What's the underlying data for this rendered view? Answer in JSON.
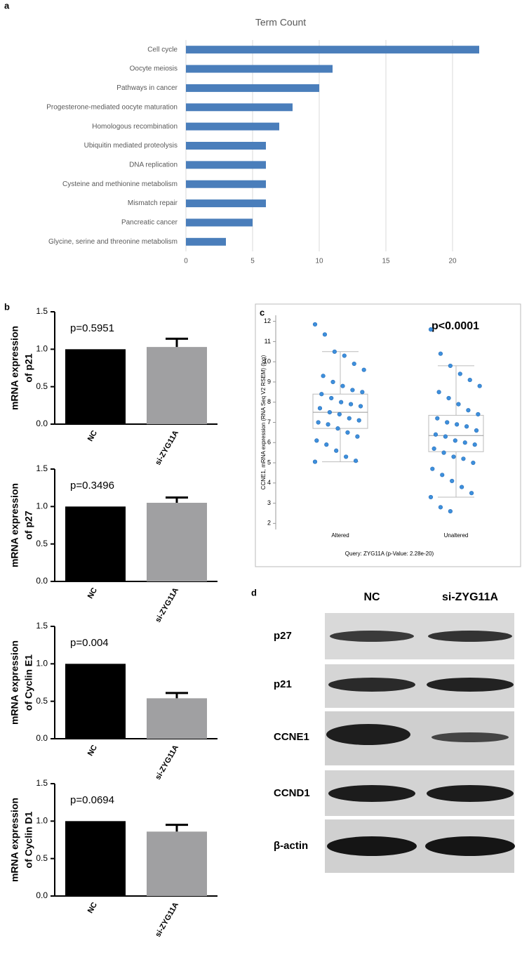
{
  "panels": [
    "a",
    "b",
    "c",
    "d"
  ],
  "chart_data": [
    {
      "type": "hbar",
      "title": "Term Count",
      "categories": [
        "Cell cycle",
        "Oocyte meiosis",
        "Pathways in cancer",
        "Progesterone-mediated oocyte maturation",
        "Homologous recombination",
        "Ubiquitin mediated proteolysis",
        "DNA replication",
        "Cysteine and methionine metabolism",
        "Mismatch repair",
        "Pancreatic cancer",
        "Glycine, serine and threonine metabolism"
      ],
      "values": [
        22,
        11,
        10,
        8,
        7,
        6,
        6,
        6,
        6,
        5,
        3
      ],
      "color": "#4a7ebb",
      "xlim": [
        0,
        23
      ],
      "xticks": [
        0,
        5,
        10,
        15,
        20
      ],
      "grid": true
    },
    {
      "type": "bar",
      "annotation": "p=0.5951",
      "y_label": [
        "mRNA expression",
        "of p21"
      ],
      "categories": [
        "NC",
        "si-ZYG11A"
      ],
      "values": [
        1.0,
        1.03
      ],
      "errors": [
        null,
        0.11
      ],
      "colors": [
        "#000000",
        "#a0a0a2"
      ],
      "ylim": [
        0,
        1.5
      ],
      "yticks": [
        {
          "value": 0,
          "label": "0.0"
        },
        0.5,
        {
          "value": 1,
          "label": "1.0"
        },
        1.5
      ]
    },
    {
      "type": "bar",
      "annotation": "p=0.3496",
      "y_label": [
        "mRNA expression",
        "of p27"
      ],
      "categories": [
        "NC",
        "si-ZYG11A"
      ],
      "values": [
        1.0,
        1.05
      ],
      "errors": [
        null,
        0.07
      ],
      "colors": [
        "#000000",
        "#a0a0a2"
      ],
      "ylim": [
        0,
        1.5
      ],
      "yticks": [
        {
          "value": 0,
          "label": "0.0"
        },
        0.5,
        {
          "value": 1,
          "label": "1.0"
        },
        1.5
      ]
    },
    {
      "type": "bar",
      "annotation": "p=0.004",
      "y_label": [
        "mRNA expression",
        "of Cyclin E1"
      ],
      "categories": [
        "NC",
        "si-ZYG11A"
      ],
      "values": [
        1.0,
        0.54
      ],
      "errors": [
        null,
        0.07
      ],
      "colors": [
        "#000000",
        "#a0a0a2"
      ],
      "ylim": [
        0,
        1.5
      ],
      "yticks": [
        {
          "value": 0,
          "label": "0.0"
        },
        0.5,
        {
          "value": 1,
          "label": "1.0"
        },
        1.5
      ]
    },
    {
      "type": "bar",
      "annotation": "p=0.0694",
      "y_label": [
        "mRNA expression",
        "of Cyclin D1"
      ],
      "categories": [
        "NC",
        "si-ZYG11A"
      ],
      "values": [
        1.0,
        0.86
      ],
      "errors": [
        null,
        0.09
      ],
      "colors": [
        "#000000",
        "#a0a0a2"
      ],
      "ylim": [
        0,
        1.5
      ],
      "yticks": [
        {
          "value": 0,
          "label": "0.0"
        },
        0.5,
        {
          "value": 1,
          "label": "1.0"
        },
        1.5
      ]
    },
    {
      "type": "box",
      "y_label": "CCNE1, mRNA expression (RNA Seq V2 RSEM) (log)",
      "x_label": "Query: ZYG11A (p-Value: 2.28e-20)",
      "annotation": "p<0.0001",
      "categories": [
        "Altered",
        "Unaltered"
      ],
      "box": {
        "whisker_low": [
          5.05,
          3.3
        ],
        "q1": [
          6.7,
          5.55
        ],
        "median": [
          7.5,
          6.35
        ],
        "q3": [
          8.4,
          7.35
        ],
        "whisker_high": [
          10.5,
          9.8
        ]
      },
      "points": [
        [
          11.85,
          11.35,
          10.5,
          10.3,
          9.9,
          9.6,
          9.3,
          9.0,
          8.8,
          8.6,
          8.5,
          8.4,
          8.2,
          8.0,
          7.9,
          7.8,
          7.7,
          7.5,
          7.4,
          7.2,
          7.1,
          7.0,
          6.9,
          6.7,
          6.5,
          6.3,
          6.1,
          5.9,
          5.6,
          5.3,
          5.1,
          5.05
        ],
        [
          11.6,
          10.4,
          9.8,
          9.4,
          9.1,
          8.8,
          8.5,
          8.2,
          7.9,
          7.6,
          7.4,
          7.2,
          7.0,
          6.9,
          6.8,
          6.6,
          6.4,
          6.3,
          6.1,
          6.0,
          5.9,
          5.7,
          5.5,
          5.3,
          5.2,
          5.0,
          4.7,
          4.4,
          4.1,
          3.8,
          3.5,
          3.3,
          2.8,
          2.6
        ]
      ],
      "color": "#3d8fdc",
      "ylim": [
        1.7,
        12.3
      ],
      "yticks": [
        2,
        3,
        4,
        5,
        6,
        7,
        8,
        9,
        10,
        11,
        12
      ]
    }
  ],
  "blot": {
    "columns": [
      "NC",
      "si-ZYG11A"
    ],
    "rows": [
      "p27",
      "p21",
      "CCNE1",
      "CCND1",
      "β-actin"
    ]
  }
}
